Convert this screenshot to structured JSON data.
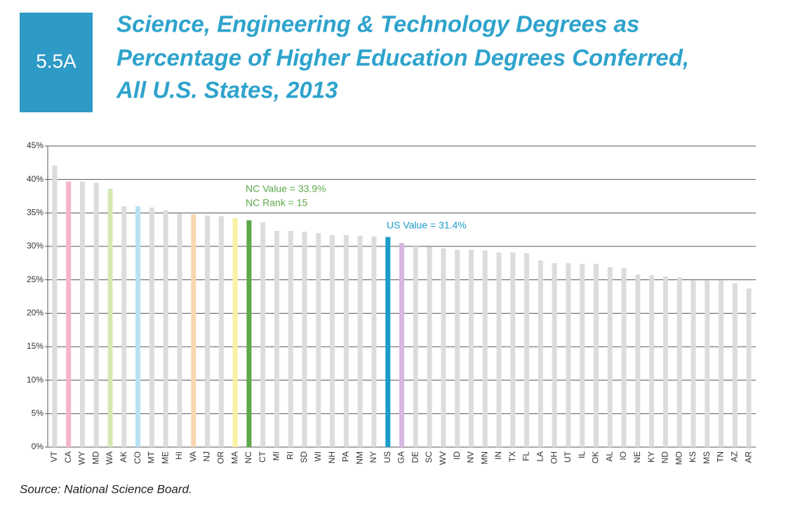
{
  "chart_data": {
    "type": "bar",
    "label": "5.5A",
    "title": [
      "Science, Engineering & Technology Degrees as",
      "Percentage of Higher Education Degrees Conferred,",
      "All U.S. States, 2013"
    ],
    "categories": [
      "VT",
      "CA",
      "WY",
      "MD",
      "WA",
      "AK",
      "CO",
      "MT",
      "ME",
      "HI",
      "VA",
      "NJ",
      "OR",
      "MA",
      "NC",
      "CT",
      "MI",
      "RI",
      "SD",
      "WI",
      "NH",
      "PA",
      "NM",
      "NY",
      "US",
      "GA",
      "DE",
      "SC",
      "WV",
      "ID",
      "NV",
      "MN",
      "IN",
      "TX",
      "FL",
      "LA",
      "OH",
      "UT",
      "IL",
      "OK",
      "AL",
      "IO",
      "NE",
      "KY",
      "ND",
      "MO",
      "KS",
      "MS",
      "TN",
      "AZ",
      "AR"
    ],
    "values": [
      42.1,
      39.7,
      39.7,
      39.5,
      38.6,
      36.0,
      36.0,
      35.8,
      35.4,
      34.9,
      34.8,
      34.6,
      34.5,
      34.2,
      33.9,
      33.6,
      32.3,
      32.3,
      32.2,
      32.0,
      31.7,
      31.7,
      31.6,
      31.5,
      31.4,
      30.5,
      30.0,
      29.9,
      29.7,
      29.5,
      29.5,
      29.4,
      29.1,
      29.1,
      29.0,
      27.9,
      27.5,
      27.5,
      27.4,
      27.4,
      26.9,
      26.8,
      25.8,
      25.7,
      25.5,
      25.4,
      24.9,
      24.9,
      24.9,
      24.5,
      23.7
    ],
    "colors": [
      "#dcdcdc",
      "#f4b6c8",
      "#dcdcdc",
      "#dcdcdc",
      "#d5e8b3",
      "#dcdcdc",
      "#b9e1f3",
      "#dcdcdc",
      "#dcdcdc",
      "#dcdcdc",
      "#f9d6b0",
      "#dcdcdc",
      "#dcdcdc",
      "#f8f2a2",
      "#5ea84a",
      "#dcdcdc",
      "#dcdcdc",
      "#dcdcdc",
      "#dcdcdc",
      "#dcdcdc",
      "#dcdcdc",
      "#dcdcdc",
      "#dcdcdc",
      "#dcdcdc",
      "#1b9cc9",
      "#d8b7e2",
      "#dcdcdc",
      "#dcdcdc",
      "#dcdcdc",
      "#dcdcdc",
      "#dcdcdc",
      "#dcdcdc",
      "#dcdcdc",
      "#dcdcdc",
      "#dcdcdc",
      "#dcdcdc",
      "#dcdcdc",
      "#dcdcdc",
      "#dcdcdc",
      "#dcdcdc",
      "#dcdcdc",
      "#dcdcdc",
      "#dcdcdc",
      "#dcdcdc",
      "#dcdcdc",
      "#dcdcdc",
      "#dcdcdc",
      "#dcdcdc",
      "#dcdcdc",
      "#dcdcdc",
      "#dcdcdc"
    ],
    "ylim": [
      0,
      45
    ],
    "yticks": [
      {
        "value": 0,
        "label": "0%"
      },
      {
        "value": 5,
        "label": "5%"
      },
      {
        "value": 10,
        "label": "10%"
      },
      {
        "value": 15,
        "label": "15%"
      },
      {
        "value": 20,
        "label": "20%"
      },
      {
        "value": 25,
        "label": "25%"
      },
      {
        "value": 30,
        "label": "30%"
      },
      {
        "value": 35,
        "label": "35%"
      },
      {
        "value": 40,
        "label": "40%"
      },
      {
        "value": 45,
        "label": "45%"
      }
    ],
    "grid": true,
    "annotations": [
      "NC Value = 33.9%",
      "NC Rank = 15",
      "US Value = 31.4%"
    ],
    "source": "Source: National Science Board."
  }
}
